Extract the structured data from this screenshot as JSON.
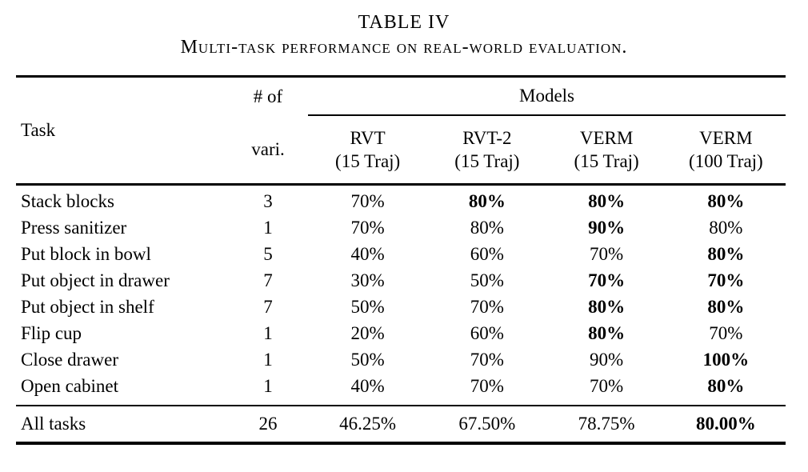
{
  "title": {
    "label": "TABLE IV",
    "caption": "Multi-task performance on real-world evaluation."
  },
  "table": {
    "header": {
      "task": "Task",
      "vari_line1": "# of",
      "vari_line2": "vari.",
      "models_group": "Models",
      "columns": [
        {
          "name": "RVT",
          "traj": "(15 Traj)"
        },
        {
          "name": "RVT-2",
          "traj": "(15 Traj)"
        },
        {
          "name": "VERM",
          "traj": "(15 Traj)"
        },
        {
          "name": "VERM",
          "traj": "(100 Traj)"
        }
      ]
    },
    "rows": [
      {
        "task": "Stack blocks",
        "vari": "3",
        "values": [
          "70%",
          "80%",
          "80%",
          "80%"
        ],
        "bold": [
          false,
          true,
          true,
          true
        ]
      },
      {
        "task": "Press sanitizer",
        "vari": "1",
        "values": [
          "70%",
          "80%",
          "90%",
          "80%"
        ],
        "bold": [
          false,
          false,
          true,
          false
        ]
      },
      {
        "task": "Put block in bowl",
        "vari": "5",
        "values": [
          "40%",
          "60%",
          "70%",
          "80%"
        ],
        "bold": [
          false,
          false,
          false,
          true
        ]
      },
      {
        "task": "Put object in drawer",
        "vari": "7",
        "values": [
          "30%",
          "50%",
          "70%",
          "70%"
        ],
        "bold": [
          false,
          false,
          true,
          true
        ]
      },
      {
        "task": "Put object in shelf",
        "vari": "7",
        "values": [
          "50%",
          "70%",
          "80%",
          "80%"
        ],
        "bold": [
          false,
          false,
          true,
          true
        ]
      },
      {
        "task": "Flip cup",
        "vari": "1",
        "values": [
          "20%",
          "60%",
          "80%",
          "70%"
        ],
        "bold": [
          false,
          false,
          true,
          false
        ]
      },
      {
        "task": "Close drawer",
        "vari": "1",
        "values": [
          "50%",
          "70%",
          "90%",
          "100%"
        ],
        "bold": [
          false,
          false,
          false,
          true
        ]
      },
      {
        "task": "Open cabinet",
        "vari": "1",
        "values": [
          "40%",
          "70%",
          "70%",
          "80%"
        ],
        "bold": [
          false,
          false,
          false,
          true
        ]
      }
    ],
    "footer": {
      "task": "All tasks",
      "vari": "26",
      "values": [
        "46.25%",
        "67.50%",
        "78.75%",
        "80.00%"
      ],
      "bold": [
        false,
        false,
        false,
        true
      ]
    },
    "colors": {
      "text": "#000000",
      "background": "#ffffff",
      "rule": "#000000"
    }
  }
}
